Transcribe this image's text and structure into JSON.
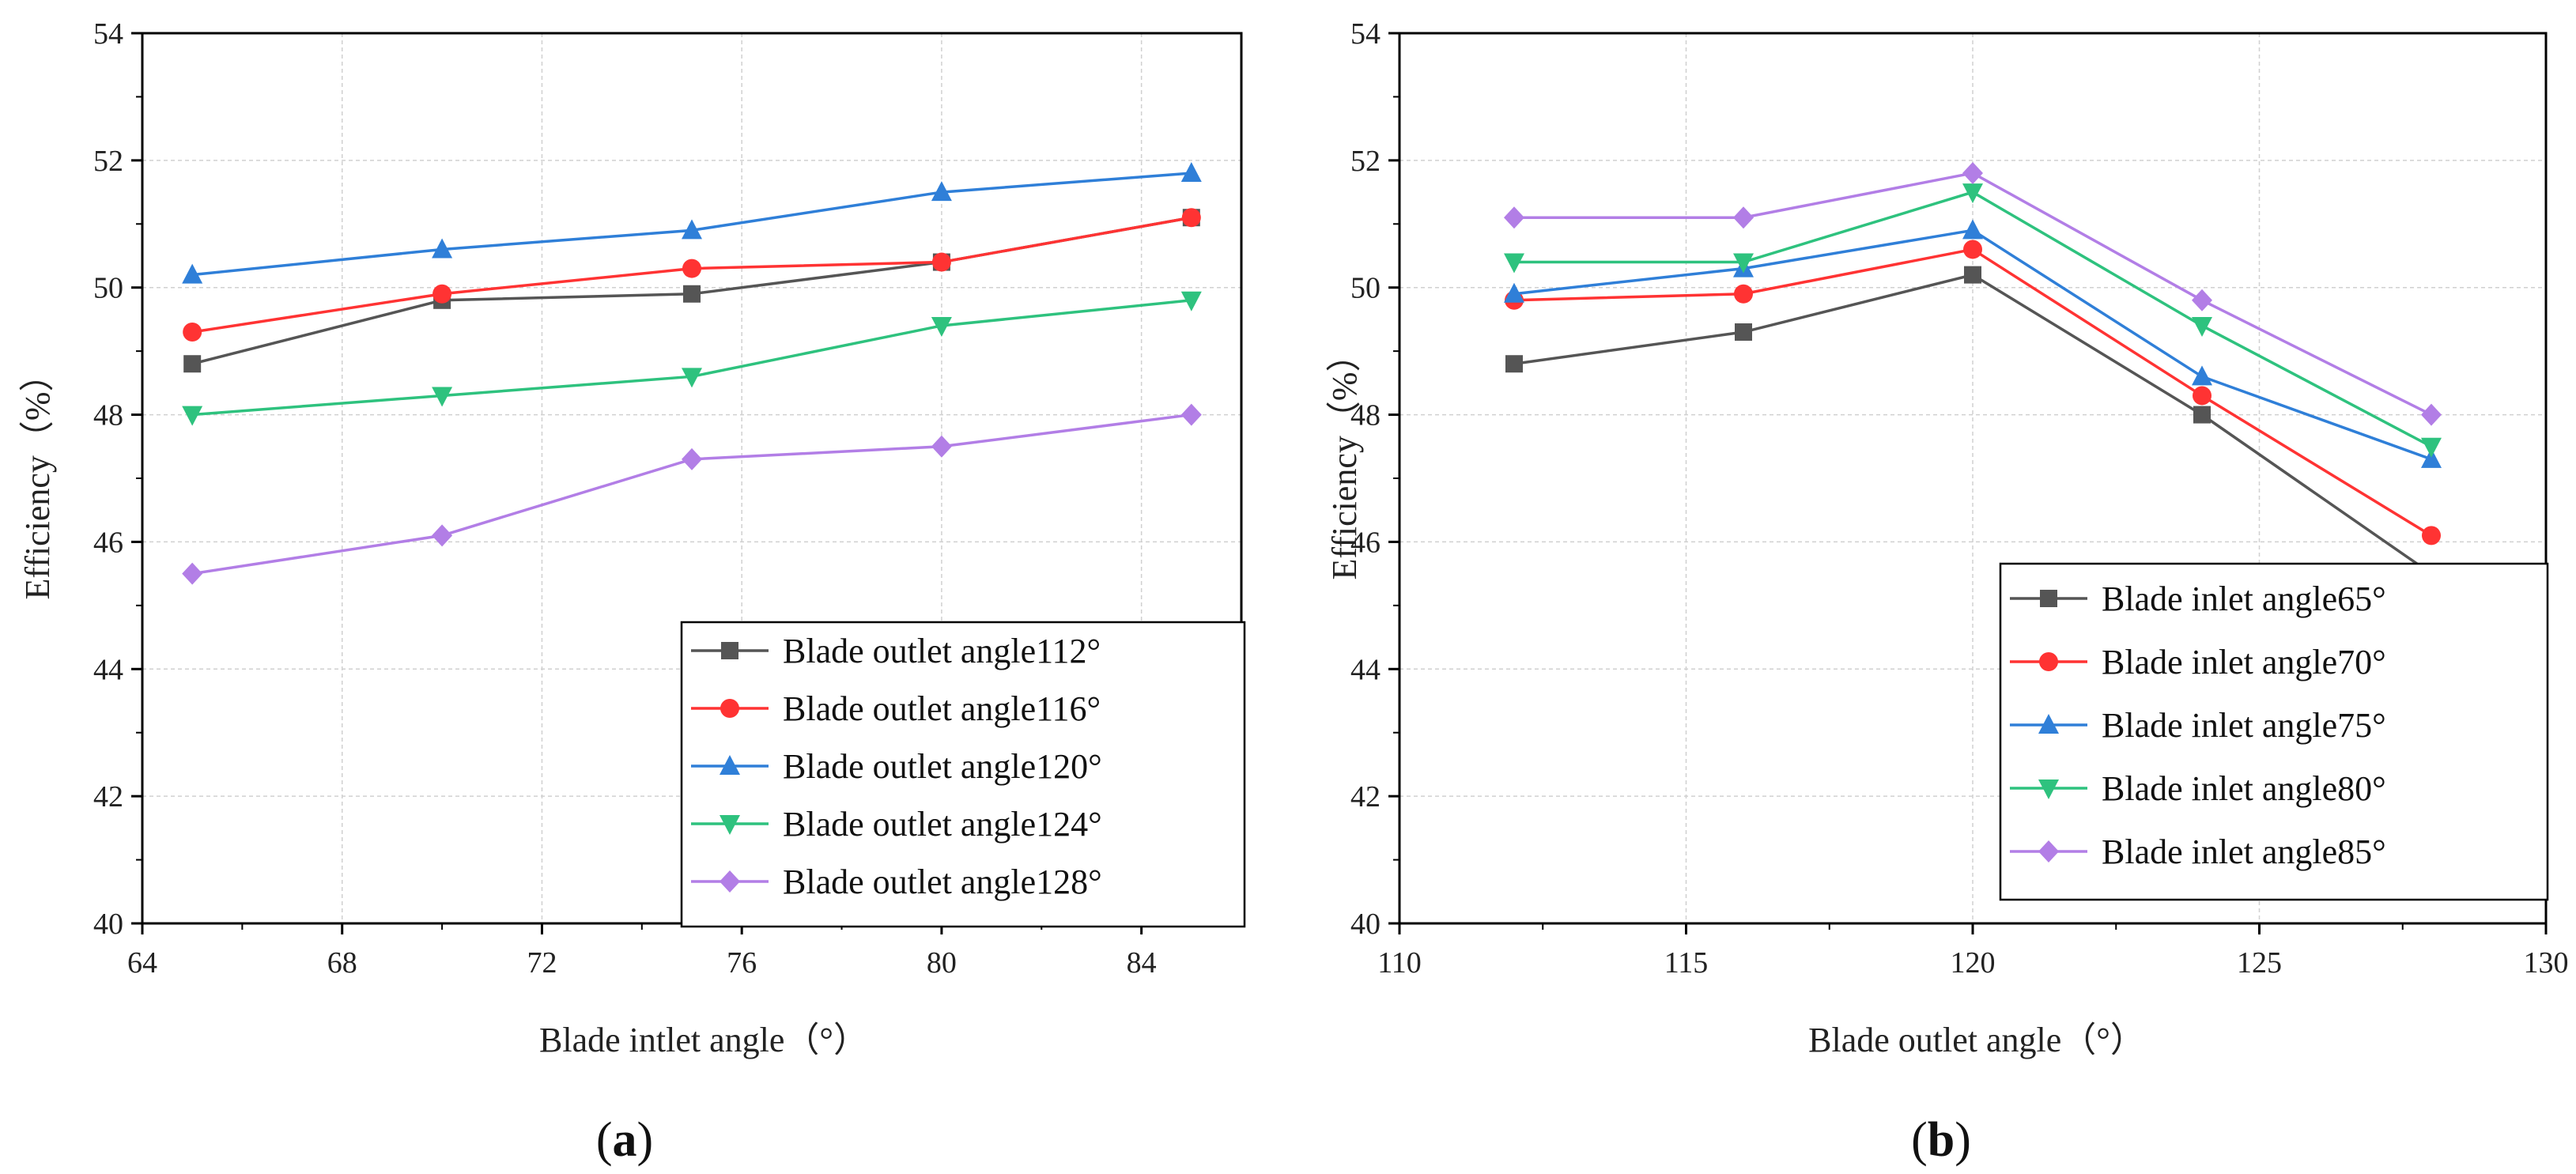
{
  "colors": {
    "series": [
      "#555555",
      "#ff3333",
      "#2f7fd8",
      "#2ec27e",
      "#b27ee6"
    ],
    "grid": "#d0d0d0",
    "axis": "#000000"
  },
  "chart_data": [
    {
      "type": "line",
      "panel": "a",
      "panel_label": "a",
      "xlabel": "Blade intlet angle（°）",
      "ylabel": "Efficiency（%）",
      "x": [
        65,
        70,
        75,
        80,
        85
      ],
      "xlim": [
        64,
        86
      ],
      "ylim": [
        40,
        54
      ],
      "xticks": [
        64,
        68,
        72,
        76,
        80,
        84
      ],
      "yticks": [
        40,
        42,
        44,
        46,
        48,
        50,
        52,
        54
      ],
      "grid": true,
      "legend_position": "bottom-right",
      "series": [
        {
          "name": "Blade outlet angle112°",
          "marker": "square",
          "values": [
            48.8,
            49.8,
            49.9,
            50.4,
            51.1
          ]
        },
        {
          "name": "Blade outlet angle116°",
          "marker": "circle",
          "values": [
            49.3,
            49.9,
            50.3,
            50.4,
            51.1
          ]
        },
        {
          "name": "Blade outlet angle120°",
          "marker": "triangle-up",
          "values": [
            50.2,
            50.6,
            50.9,
            51.5,
            51.8
          ]
        },
        {
          "name": "Blade outlet angle124°",
          "marker": "triangle-down",
          "values": [
            48.0,
            48.3,
            48.6,
            49.4,
            49.8
          ]
        },
        {
          "name": "Blade outlet angle128°",
          "marker": "diamond",
          "values": [
            45.5,
            46.1,
            47.3,
            47.5,
            48.0
          ]
        }
      ]
    },
    {
      "type": "line",
      "panel": "b",
      "panel_label": "b",
      "xlabel": "Blade outlet angle（°）",
      "ylabel": "Efficiency（%）",
      "x": [
        112,
        116,
        120,
        124,
        128
      ],
      "xlim": [
        110,
        130
      ],
      "ylim": [
        40,
        54
      ],
      "xticks": [
        110,
        115,
        120,
        125,
        130
      ],
      "yticks": [
        40,
        42,
        44,
        46,
        48,
        50,
        52,
        54
      ],
      "grid": true,
      "legend_position": "bottom-right",
      "series": [
        {
          "name": "Blade inlet angle65°",
          "marker": "square",
          "values": [
            48.8,
            49.3,
            50.2,
            48.0,
            45.5
          ]
        },
        {
          "name": "Blade inlet angle70°",
          "marker": "circle",
          "values": [
            49.8,
            49.9,
            50.6,
            48.3,
            46.1
          ]
        },
        {
          "name": "Blade inlet angle75°",
          "marker": "triangle-up",
          "values": [
            49.9,
            50.3,
            50.9,
            48.6,
            47.3
          ]
        },
        {
          "name": "Blade inlet angle80°",
          "marker": "triangle-down",
          "values": [
            50.4,
            50.4,
            51.5,
            49.4,
            47.5
          ]
        },
        {
          "name": "Blade inlet angle85°",
          "marker": "diamond",
          "values": [
            51.1,
            51.1,
            51.8,
            49.8,
            48.0
          ]
        }
      ]
    }
  ]
}
